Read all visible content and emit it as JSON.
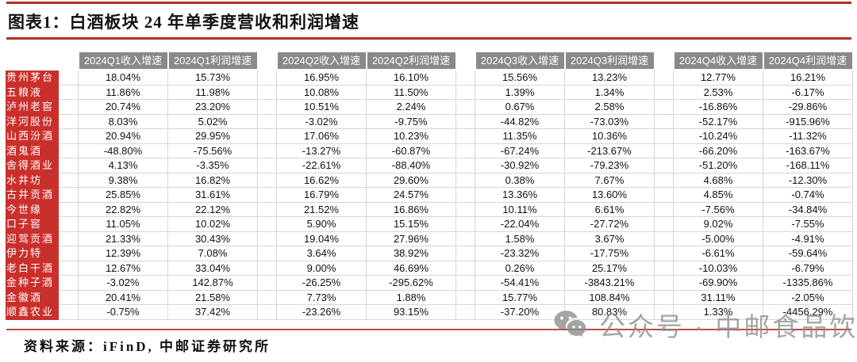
{
  "title": "图表1：白酒板块 24 年单季度营收和利润增速",
  "source_note": "资料来源：iFinD, 中邮证券研究所",
  "watermark": {
    "icon": "wechat-icon",
    "text": "公众号 · 中邮食品饮料"
  },
  "colors": {
    "accent_red": "#c9302c",
    "rule_red": "#b22e25",
    "bottom_rule_red": "#bf4b42",
    "header_gray": "#898989",
    "gridline_gray": "#d6d6d6",
    "watermark_gray": "#8f8f8f"
  },
  "chart_data": {
    "type": "table",
    "title": "白酒板块 24 年单季度营收和利润增速",
    "columns": [
      "2024Q1收入增速",
      "2024Q1利润增速",
      "2024Q2收入增速",
      "2024Q2利润增速",
      "2024Q3收入增速",
      "2024Q3利润增速",
      "2024Q4收入增速",
      "2024Q4利润增速"
    ],
    "rows": [
      {
        "name": "贵州茅台",
        "values": [
          "18.04%",
          "15.73%",
          "16.95%",
          "16.10%",
          "15.56%",
          "13.23%",
          "12.77%",
          "16.21%"
        ]
      },
      {
        "name": "五粮液",
        "values": [
          "11.86%",
          "11.98%",
          "10.08%",
          "11.50%",
          "1.39%",
          "1.34%",
          "2.53%",
          "-6.17%"
        ]
      },
      {
        "name": "泸州老窖",
        "values": [
          "20.74%",
          "23.20%",
          "10.51%",
          "2.24%",
          "0.67%",
          "2.58%",
          "-16.86%",
          "-29.86%"
        ]
      },
      {
        "name": "洋河股份",
        "values": [
          "8.03%",
          "5.02%",
          "-3.02%",
          "-9.75%",
          "-44.82%",
          "-73.03%",
          "-52.17%",
          "-915.96%"
        ]
      },
      {
        "name": "山西汾酒",
        "values": [
          "20.94%",
          "29.95%",
          "17.06%",
          "10.23%",
          "11.35%",
          "10.36%",
          "-10.24%",
          "-11.32%"
        ]
      },
      {
        "name": "酒鬼酒",
        "values": [
          "-48.80%",
          "-75.56%",
          "-13.27%",
          "-60.87%",
          "-67.24%",
          "-213.67%",
          "-66.20%",
          "-163.67%"
        ]
      },
      {
        "name": "舍得酒业",
        "values": [
          "4.13%",
          "-3.35%",
          "-22.61%",
          "-88.40%",
          "-30.92%",
          "-79.23%",
          "-51.20%",
          "-168.11%"
        ]
      },
      {
        "name": "水井坊",
        "values": [
          "9.38%",
          "16.82%",
          "16.62%",
          "29.60%",
          "0.38%",
          "7.67%",
          "4.68%",
          "-12.30%"
        ]
      },
      {
        "name": "古井贡酒",
        "values": [
          "25.85%",
          "31.61%",
          "16.79%",
          "24.57%",
          "13.36%",
          "13.60%",
          "4.85%",
          "-0.74%"
        ]
      },
      {
        "name": "今世缘",
        "values": [
          "22.82%",
          "22.12%",
          "21.52%",
          "16.86%",
          "10.11%",
          "6.61%",
          "-7.56%",
          "-34.84%"
        ]
      },
      {
        "name": "口子窖",
        "values": [
          "11.05%",
          "10.02%",
          "5.90%",
          "15.15%",
          "-22.04%",
          "-27.72%",
          "9.02%",
          "-7.55%"
        ]
      },
      {
        "name": "迎驾贡酒",
        "values": [
          "21.33%",
          "30.43%",
          "19.04%",
          "27.96%",
          "1.58%",
          "3.67%",
          "-5.00%",
          "-4.91%"
        ]
      },
      {
        "name": "伊力特",
        "values": [
          "12.39%",
          "7.08%",
          "3.64%",
          "38.92%",
          "-23.32%",
          "-17.75%",
          "-6.61%",
          "-59.64%"
        ]
      },
      {
        "name": "老白干酒",
        "values": [
          "12.67%",
          "33.04%",
          "9.00%",
          "46.69%",
          "0.26%",
          "25.17%",
          "-10.03%",
          "-6.79%"
        ]
      },
      {
        "name": "金种子酒",
        "values": [
          "-3.02%",
          "142.87%",
          "-26.25%",
          "-295.62%",
          "-54.41%",
          "-3843.21%",
          "-69.90%",
          "-1335.86%"
        ]
      },
      {
        "name": "金徽酒",
        "values": [
          "20.41%",
          "21.58%",
          "7.73%",
          "1.88%",
          "15.77%",
          "108.84%",
          "31.11%",
          "-2.05%"
        ]
      },
      {
        "name": "顺鑫农业",
        "values": [
          "-0.75%",
          "37.42%",
          "-23.26%",
          "93.15%",
          "-37.20%",
          "80.83%",
          "1.33%",
          "-4456.29%"
        ]
      }
    ]
  }
}
